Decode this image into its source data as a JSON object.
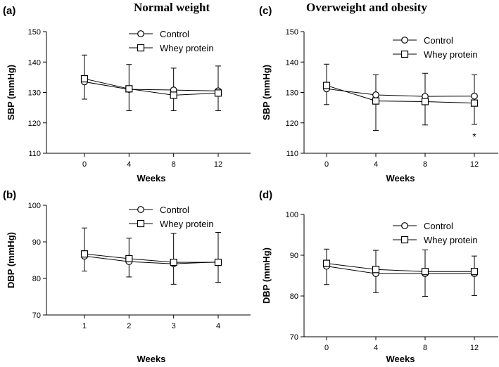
{
  "column_titles": {
    "left": "Normal weight",
    "right": "Overweight and obesity"
  },
  "legend": {
    "control": "Control",
    "whey": "Whey protein"
  },
  "chart_data": [
    {
      "panel": "(a)",
      "type": "line",
      "xlabel": "Weeks",
      "ylabel": "SBP (mmHg)",
      "ylim": [
        110,
        150
      ],
      "yticks": [
        110,
        120,
        130,
        140,
        150
      ],
      "x": [
        0,
        4,
        8,
        12
      ],
      "xticks": [
        "0",
        "4",
        "8",
        "12"
      ],
      "series": [
        {
          "name": "Control",
          "marker": "circle",
          "values": [
            133.5,
            131,
            130.8,
            130.5
          ],
          "err_low": [
            127.8,
            124,
            124,
            124
          ],
          "err_high": [
            142.3,
            139.2,
            138,
            138.7
          ]
        },
        {
          "name": "Whey protein",
          "marker": "square",
          "values": [
            134.5,
            131.2,
            129.1,
            129.8
          ],
          "err_low": [
            127.8,
            123.8,
            122,
            123.3
          ],
          "err_high": [
            142.3,
            139.2,
            138,
            138.7
          ]
        }
      ],
      "annotations": []
    },
    {
      "panel": "(b)",
      "type": "line",
      "xlabel": "Weeks",
      "ylabel": "DBP (mmHg)",
      "ylim": [
        70,
        100
      ],
      "yticks": [
        70,
        80,
        90,
        100
      ],
      "x": [
        1,
        2,
        3,
        4
      ],
      "xticks": [
        "1",
        "2",
        "3",
        "4"
      ],
      "series": [
        {
          "name": "Control",
          "marker": "circle",
          "values": [
            86.1,
            84.6,
            84,
            84.5
          ],
          "err_low": [
            82,
            80.4,
            78.4,
            78.9
          ],
          "err_high": [
            93.8,
            91,
            92.3,
            92.6
          ]
        },
        {
          "name": "Whey protein",
          "marker": "square",
          "values": [
            86.7,
            85.4,
            84.4,
            84.4
          ],
          "err_low": [
            82,
            80.4,
            78.4,
            78.9
          ],
          "err_high": [
            93.8,
            91,
            92.3,
            92.6
          ]
        }
      ],
      "annotations": []
    },
    {
      "panel": "(c)",
      "type": "line",
      "xlabel": "Weeks",
      "ylabel": "SBP (mmHg)",
      "ylim": [
        110,
        150
      ],
      "yticks": [
        110,
        120,
        130,
        140,
        150
      ],
      "x": [
        0,
        4,
        8,
        12
      ],
      "xticks": [
        "0",
        "4",
        "8",
        "12"
      ],
      "series": [
        {
          "name": "Control",
          "marker": "circle",
          "values": [
            131.2,
            129.2,
            128.7,
            128.8
          ],
          "err_low": [
            126,
            117.5,
            119.3,
            119.5
          ],
          "err_high": [
            139.3,
            135.8,
            136.3,
            135.8
          ]
        },
        {
          "name": "Whey protein",
          "marker": "square",
          "values": [
            132.3,
            127.2,
            127,
            126.5
          ],
          "err_low": [
            126,
            117.5,
            119.3,
            119.5
          ],
          "err_high": [
            139.3,
            135.8,
            136.3,
            135.8
          ]
        }
      ],
      "annotations": [
        {
          "text": "*",
          "x": 12,
          "y": 115.5
        }
      ]
    },
    {
      "panel": "(d)",
      "type": "line",
      "xlabel": "Weeks",
      "ylabel": "DBP (mmHg)",
      "ylim": [
        70,
        100
      ],
      "yticks": [
        70,
        80,
        90,
        100
      ],
      "x": [
        0,
        4,
        8,
        12
      ],
      "xticks": [
        "0",
        "4",
        "8",
        "12"
      ],
      "series": [
        {
          "name": "Control",
          "marker": "circle",
          "values": [
            87.3,
            85.5,
            85.5,
            85.5
          ],
          "err_low": [
            82.8,
            80.8,
            79.9,
            80.1
          ],
          "err_high": [
            91.5,
            91.2,
            91.3,
            89.8
          ]
        },
        {
          "name": "Whey protein",
          "marker": "square",
          "values": [
            88,
            86.5,
            86,
            86
          ],
          "err_low": [
            82.8,
            80.8,
            79.9,
            80.1
          ],
          "err_high": [
            91.5,
            91.2,
            91.3,
            89.8
          ]
        }
      ],
      "annotations": []
    }
  ]
}
